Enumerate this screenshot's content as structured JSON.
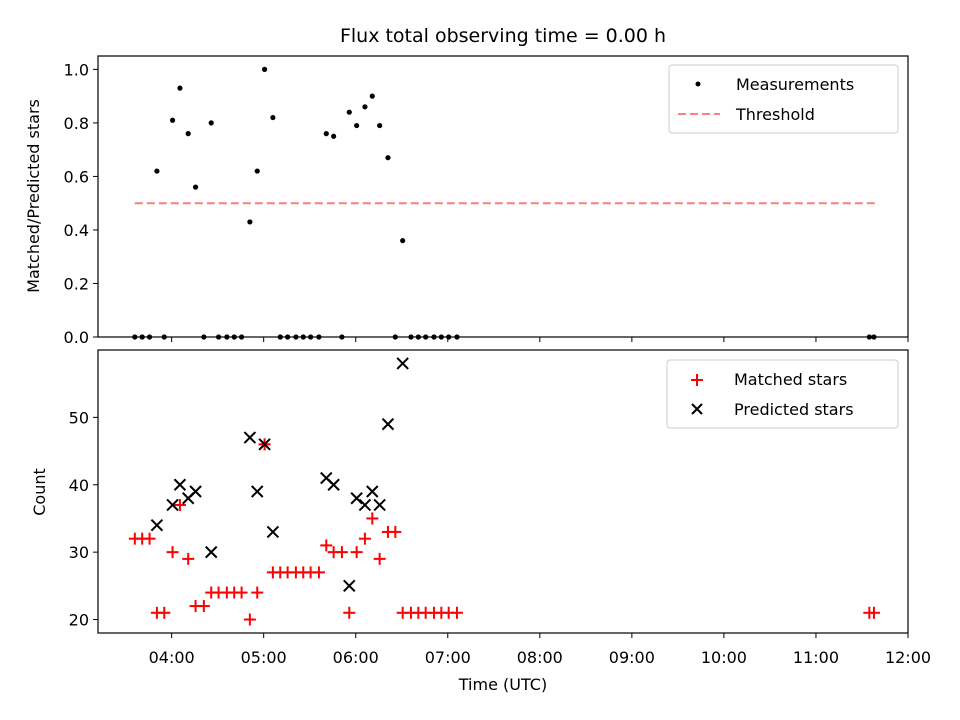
{
  "chart_data": {
    "type": "scatter",
    "title": "Flux total observing time = 0.00 h",
    "xlabel": "Time (UTC)",
    "xlim_hours": [
      3.2,
      12.0
    ],
    "xticks": [
      {
        "h": 4,
        "label": "04:00"
      },
      {
        "h": 5,
        "label": "05:00"
      },
      {
        "h": 6,
        "label": "06:00"
      },
      {
        "h": 7,
        "label": "07:00"
      },
      {
        "h": 8,
        "label": "08:00"
      },
      {
        "h": 9,
        "label": "09:00"
      },
      {
        "h": 10,
        "label": "10:00"
      },
      {
        "h": 11,
        "label": "11:00"
      },
      {
        "h": 12,
        "label": "12:00"
      }
    ],
    "panels": [
      {
        "ylabel": "Matched/Predicted stars",
        "ylim": [
          0,
          1.05
        ],
        "yticks": [
          {
            "v": 0.0,
            "label": "0.0"
          },
          {
            "v": 0.2,
            "label": "0.2"
          },
          {
            "v": 0.4,
            "label": "0.4"
          },
          {
            "v": 0.6,
            "label": "0.6"
          },
          {
            "v": 0.8,
            "label": "0.8"
          },
          {
            "v": 1.0,
            "label": "1.0"
          }
        ],
        "legend": {
          "position": "top-right",
          "entries": [
            "Measurements",
            "Threshold"
          ]
        },
        "threshold": {
          "name": "Threshold",
          "value": 0.5,
          "x_range": [
            3.6,
            11.65
          ],
          "color": "#ff7f7f",
          "style": "dashed"
        },
        "series": [
          {
            "name": "Measurements",
            "marker": "dot",
            "color": "#000000",
            "points": [
              [
                3.6,
                0
              ],
              [
                3.68,
                0
              ],
              [
                3.76,
                0
              ],
              [
                3.84,
                0.62
              ],
              [
                3.92,
                0
              ],
              [
                4.01,
                0.81
              ],
              [
                4.09,
                0.93
              ],
              [
                4.18,
                0.76
              ],
              [
                4.26,
                0.56
              ],
              [
                4.35,
                0
              ],
              [
                4.43,
                0.8
              ],
              [
                4.51,
                0
              ],
              [
                4.6,
                0
              ],
              [
                4.68,
                0
              ],
              [
                4.76,
                0
              ],
              [
                4.85,
                0.43
              ],
              [
                4.93,
                0.62
              ],
              [
                5.01,
                1.0
              ],
              [
                5.1,
                0.82
              ],
              [
                5.18,
                0
              ],
              [
                5.26,
                0
              ],
              [
                5.35,
                0
              ],
              [
                5.43,
                0
              ],
              [
                5.51,
                0
              ],
              [
                5.6,
                0
              ],
              [
                5.68,
                0.76
              ],
              [
                5.76,
                0.75
              ],
              [
                5.85,
                0
              ],
              [
                5.93,
                0.84
              ],
              [
                6.01,
                0.79
              ],
              [
                6.1,
                0.86
              ],
              [
                6.18,
                0.9
              ],
              [
                6.26,
                0.79
              ],
              [
                6.35,
                0.67
              ],
              [
                6.43,
                0
              ],
              [
                6.51,
                0.36
              ],
              [
                6.6,
                0
              ],
              [
                6.68,
                0
              ],
              [
                6.76,
                0
              ],
              [
                6.85,
                0
              ],
              [
                6.93,
                0
              ],
              [
                7.01,
                0
              ],
              [
                7.1,
                0
              ],
              [
                11.58,
                0
              ],
              [
                11.63,
                0
              ]
            ]
          }
        ]
      },
      {
        "ylabel": "Count",
        "ylim": [
          18,
          60
        ],
        "yticks": [
          {
            "v": 20,
            "label": "20"
          },
          {
            "v": 30,
            "label": "30"
          },
          {
            "v": 40,
            "label": "40"
          },
          {
            "v": 50,
            "label": "50"
          }
        ],
        "legend": {
          "position": "top-right",
          "entries": [
            "Matched stars",
            "Predicted stars"
          ]
        },
        "series": [
          {
            "name": "Matched stars",
            "marker": "plus",
            "color": "#ff0000",
            "points": [
              [
                3.6,
                32
              ],
              [
                3.68,
                32
              ],
              [
                3.76,
                32
              ],
              [
                3.84,
                21
              ],
              [
                3.92,
                21
              ],
              [
                4.01,
                30
              ],
              [
                4.09,
                37
              ],
              [
                4.18,
                29
              ],
              [
                4.26,
                22
              ],
              [
                4.35,
                22
              ],
              [
                4.43,
                24
              ],
              [
                4.51,
                24
              ],
              [
                4.6,
                24
              ],
              [
                4.68,
                24
              ],
              [
                4.76,
                24
              ],
              [
                4.85,
                20
              ],
              [
                4.93,
                24
              ],
              [
                5.01,
                46
              ],
              [
                5.1,
                27
              ],
              [
                5.18,
                27
              ],
              [
                5.26,
                27
              ],
              [
                5.35,
                27
              ],
              [
                5.43,
                27
              ],
              [
                5.51,
                27
              ],
              [
                5.6,
                27
              ],
              [
                5.68,
                31
              ],
              [
                5.76,
                30
              ],
              [
                5.85,
                30
              ],
              [
                5.93,
                21
              ],
              [
                6.01,
                30
              ],
              [
                6.1,
                32
              ],
              [
                6.18,
                35
              ],
              [
                6.26,
                29
              ],
              [
                6.35,
                33
              ],
              [
                6.43,
                33
              ],
              [
                6.51,
                21
              ],
              [
                6.6,
                21
              ],
              [
                6.68,
                21
              ],
              [
                6.76,
                21
              ],
              [
                6.85,
                21
              ],
              [
                6.93,
                21
              ],
              [
                7.01,
                21
              ],
              [
                7.1,
                21
              ],
              [
                11.58,
                21
              ],
              [
                11.63,
                21
              ]
            ]
          },
          {
            "name": "Predicted stars",
            "marker": "x",
            "color": "#000000",
            "points": [
              [
                3.84,
                34
              ],
              [
                4.01,
                37
              ],
              [
                4.09,
                40
              ],
              [
                4.18,
                38
              ],
              [
                4.26,
                39
              ],
              [
                4.43,
                30
              ],
              [
                4.85,
                47
              ],
              [
                4.93,
                39
              ],
              [
                5.01,
                46
              ],
              [
                5.1,
                33
              ],
              [
                5.68,
                41
              ],
              [
                5.76,
                40
              ],
              [
                5.93,
                25
              ],
              [
                6.01,
                38
              ],
              [
                6.1,
                37
              ],
              [
                6.18,
                39
              ],
              [
                6.26,
                37
              ],
              [
                6.35,
                49
              ],
              [
                6.51,
                58
              ]
            ]
          }
        ]
      }
    ]
  }
}
